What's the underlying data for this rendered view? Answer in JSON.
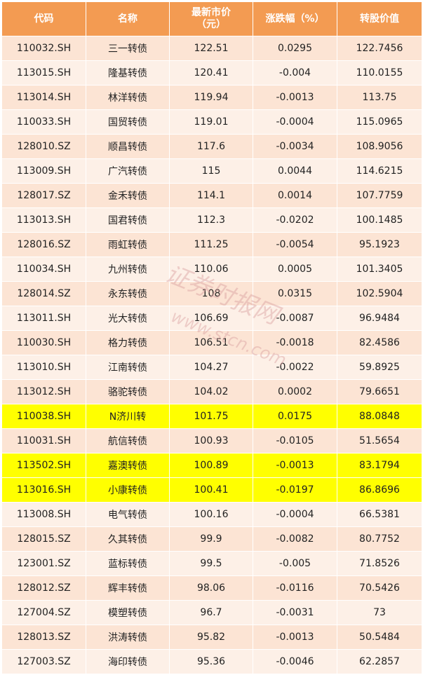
{
  "columns": [
    "代码",
    "名称",
    "最新市价\n（元）",
    "涨跌幅（%）",
    "转股价值"
  ],
  "rows": [
    {
      "code": "110032.SH",
      "name": "三一转债",
      "price": "122.51",
      "change": "0.0295",
      "conv": "122.7456",
      "style": ""
    },
    {
      "code": "113015.SH",
      "name": "隆基转债",
      "price": "120.41",
      "change": "-0.004",
      "conv": "110.0155",
      "style": ""
    },
    {
      "code": "113014.SH",
      "name": "林洋转债",
      "price": "119.94",
      "change": "-0.0013",
      "conv": "113.75",
      "style": ""
    },
    {
      "code": "110033.SH",
      "name": "国贸转债",
      "price": "119.01",
      "change": "-0.0004",
      "conv": "115.0965",
      "style": ""
    },
    {
      "code": "128010.SZ",
      "name": "顺昌转债",
      "price": "117.6",
      "change": "-0.0034",
      "conv": "108.9056",
      "style": ""
    },
    {
      "code": "113009.SH",
      "name": "广汽转债",
      "price": "115",
      "change": "0.0044",
      "conv": "114.6215",
      "style": ""
    },
    {
      "code": "128017.SZ",
      "name": "金禾转债",
      "price": "114.1",
      "change": "0.0014",
      "conv": "107.7759",
      "style": ""
    },
    {
      "code": "113013.SH",
      "name": "国君转债",
      "price": "112.3",
      "change": "-0.0202",
      "conv": "100.1485",
      "style": ""
    },
    {
      "code": "128016.SZ",
      "name": "雨虹转债",
      "price": "111.25",
      "change": "-0.0054",
      "conv": "95.1923",
      "style": ""
    },
    {
      "code": "110034.SH",
      "name": "九州转债",
      "price": "110.06",
      "change": "0.0005",
      "conv": "101.3405",
      "style": ""
    },
    {
      "code": "128014.SZ",
      "name": "永东转债",
      "price": "108",
      "change": "0.0315",
      "conv": "102.5904",
      "style": ""
    },
    {
      "code": "113011.SH",
      "name": "光大转债",
      "price": "106.69",
      "change": "-0.0087",
      "conv": "96.9484",
      "style": ""
    },
    {
      "code": "110030.SH",
      "name": "格力转债",
      "price": "106.51",
      "change": "-0.0018",
      "conv": "82.4586",
      "style": ""
    },
    {
      "code": "113010.SH",
      "name": "江南转债",
      "price": "104.27",
      "change": "-0.0022",
      "conv": "59.8925",
      "style": ""
    },
    {
      "code": "113012.SH",
      "name": "骆驼转债",
      "price": "104.02",
      "change": "0.0002",
      "conv": "79.6651",
      "style": ""
    },
    {
      "code": "110038.SH",
      "name": "N济川转",
      "price": "101.75",
      "change": "0.0175",
      "conv": "88.0848",
      "style": "highlight"
    },
    {
      "code": "110031.SH",
      "name": "航信转债",
      "price": "100.93",
      "change": "-0.0105",
      "conv": "51.5654",
      "style": ""
    },
    {
      "code": "113502.SH",
      "name": "嘉澳转债",
      "price": "100.89",
      "change": "-0.0013",
      "conv": "83.1794",
      "style": "highlight"
    },
    {
      "code": "113016.SH",
      "name": "小康转债",
      "price": "100.41",
      "change": "-0.0197",
      "conv": "86.8696",
      "style": "highlight"
    },
    {
      "code": "113008.SH",
      "name": "电气转债",
      "price": "100.16",
      "change": "-0.0004",
      "conv": "66.5381",
      "style": ""
    },
    {
      "code": "128015.SZ",
      "name": "久其转债",
      "price": "99.9",
      "change": "-0.0082",
      "conv": "80.7752",
      "style": "red"
    },
    {
      "code": "123001.SZ",
      "name": "蓝标转债",
      "price": "99.5",
      "change": "-0.005",
      "conv": "71.8526",
      "style": "red"
    },
    {
      "code": "128012.SZ",
      "name": "辉丰转债",
      "price": "98.06",
      "change": "-0.0116",
      "conv": "70.5426",
      "style": "red"
    },
    {
      "code": "127004.SZ",
      "name": "模塑转债",
      "price": "96.7",
      "change": "-0.0031",
      "conv": "73",
      "style": "red"
    },
    {
      "code": "128013.SZ",
      "name": "洪涛转债",
      "price": "95.82",
      "change": "-0.0013",
      "conv": "50.5484",
      "style": "red"
    },
    {
      "code": "127003.SZ",
      "name": "海印转债",
      "price": "95.36",
      "change": "-0.0046",
      "conv": "62.2857",
      "style": "red"
    }
  ],
  "watermark": {
    "brand": "证券时报网",
    "url": "www.stcn.com"
  },
  "colors": {
    "header": "#f39b52",
    "row_a": "#fce4d4",
    "row_b": "#fdf0e7",
    "highlight": "#ffff00",
    "red_text": "#e0202a"
  }
}
